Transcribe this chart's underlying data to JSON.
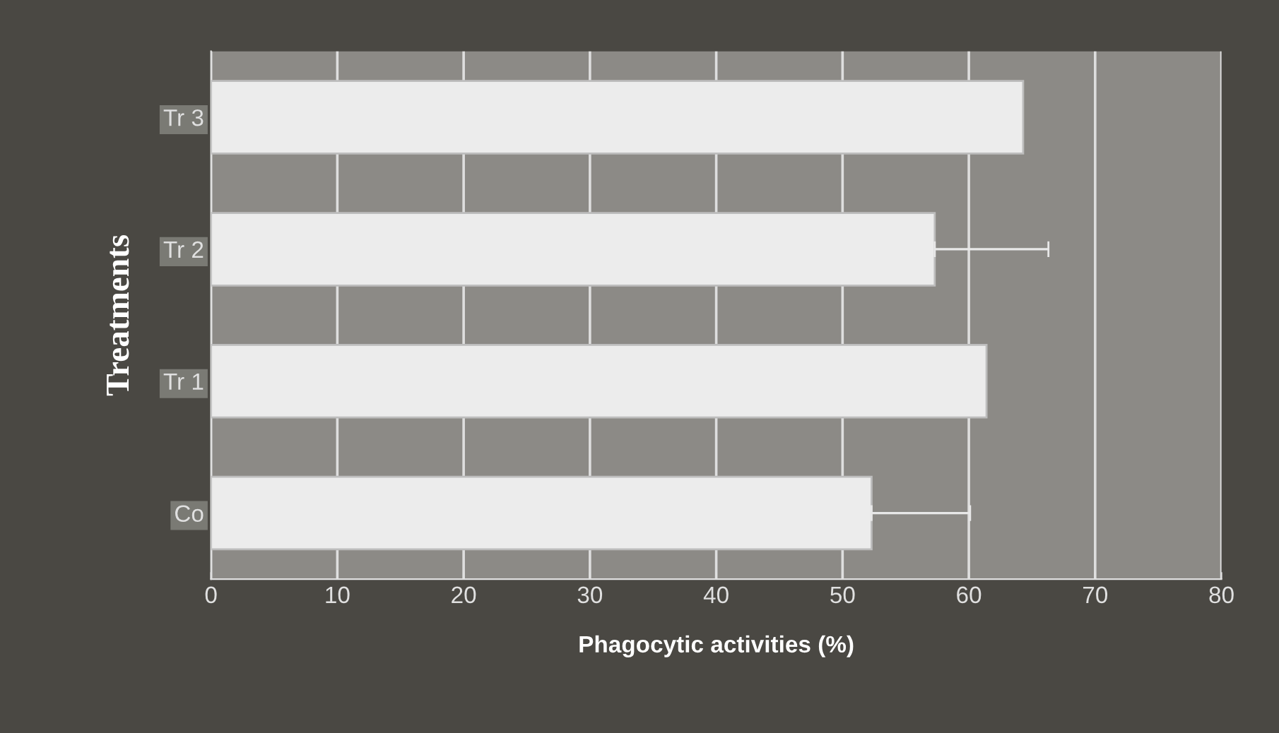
{
  "chart_data": {
    "type": "bar",
    "orientation": "horizontal",
    "categories": [
      "Tr 3",
      "Tr 2",
      "Tr 1",
      "Co"
    ],
    "values": [
      64.3,
      57.3,
      61.4,
      52.3
    ],
    "errors": [
      null,
      9,
      null,
      7.8
    ],
    "color": "#ececec",
    "xlabel": "Phagocytic activities (%)",
    "ylabel": "Treatments",
    "xlim": [
      0,
      80
    ],
    "xticks": [
      0,
      10,
      20,
      30,
      40,
      50,
      60,
      70,
      80
    ],
    "grid": "x"
  }
}
